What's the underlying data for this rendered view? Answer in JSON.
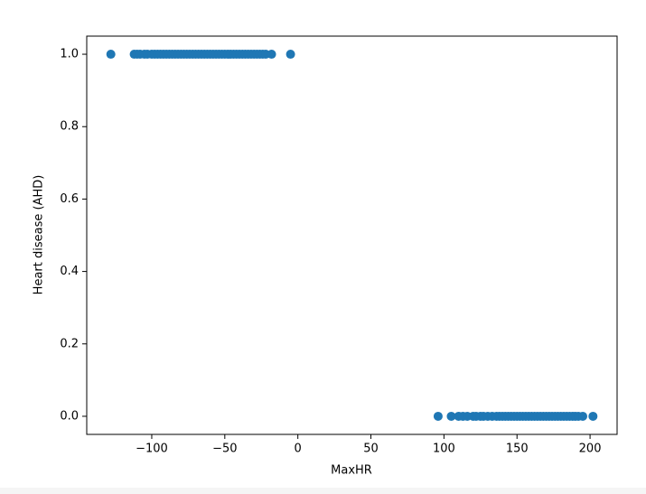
{
  "chart_data": {
    "type": "scatter",
    "xlabel": "MaxHR",
    "ylabel": "Heart disease (AHD)",
    "color": "#1f77b4",
    "x": [
      -128,
      -112,
      -110,
      -108,
      -105,
      -103,
      -100,
      -98,
      -96,
      -94,
      -92,
      -90,
      -88,
      -86,
      -84,
      -82,
      -80,
      -78,
      -76,
      -74,
      -72,
      -70,
      -68,
      -66,
      -64,
      -62,
      -60,
      -58,
      -56,
      -54,
      -52,
      -50,
      -48,
      -46,
      -44,
      -42,
      -40,
      -38,
      -36,
      -34,
      -32,
      -30,
      -28,
      -26,
      -24,
      -22,
      -18,
      -5,
      96,
      105,
      110,
      113,
      116,
      120,
      122,
      125,
      127,
      130,
      133,
      136,
      138,
      140,
      142,
      144,
      146,
      148,
      150,
      152,
      154,
      156,
      158,
      160,
      162,
      164,
      166,
      168,
      170,
      172,
      174,
      176,
      178,
      180,
      182,
      184,
      186,
      188,
      190,
      192,
      195,
      202
    ],
    "values": [
      1,
      1,
      1,
      1,
      1,
      1,
      1,
      1,
      1,
      1,
      1,
      1,
      1,
      1,
      1,
      1,
      1,
      1,
      1,
      1,
      1,
      1,
      1,
      1,
      1,
      1,
      1,
      1,
      1,
      1,
      1,
      1,
      1,
      1,
      1,
      1,
      1,
      1,
      1,
      1,
      1,
      1,
      1,
      1,
      1,
      1,
      1,
      1,
      0,
      0,
      0,
      0,
      0,
      0,
      0,
      0,
      0,
      0,
      0,
      0,
      0,
      0,
      0,
      0,
      0,
      0,
      0,
      0,
      0,
      0,
      0,
      0,
      0,
      0,
      0,
      0,
      0,
      0,
      0,
      0,
      0,
      0,
      0,
      0,
      0,
      0,
      0,
      0,
      0,
      0
    ],
    "xlim": [
      -144.5,
      218.5
    ],
    "ylim": [
      -0.05,
      1.05
    ],
    "xticks": [
      {
        "value": -100,
        "label": "−100"
      },
      {
        "value": -50,
        "label": "−50"
      },
      0,
      50,
      100,
      150,
      200
    ],
    "yticks": [
      {
        "value": 0,
        "label": "0.0"
      },
      0.2,
      0.4,
      0.6,
      0.8,
      {
        "value": 1,
        "label": "1.0"
      }
    ]
  }
}
